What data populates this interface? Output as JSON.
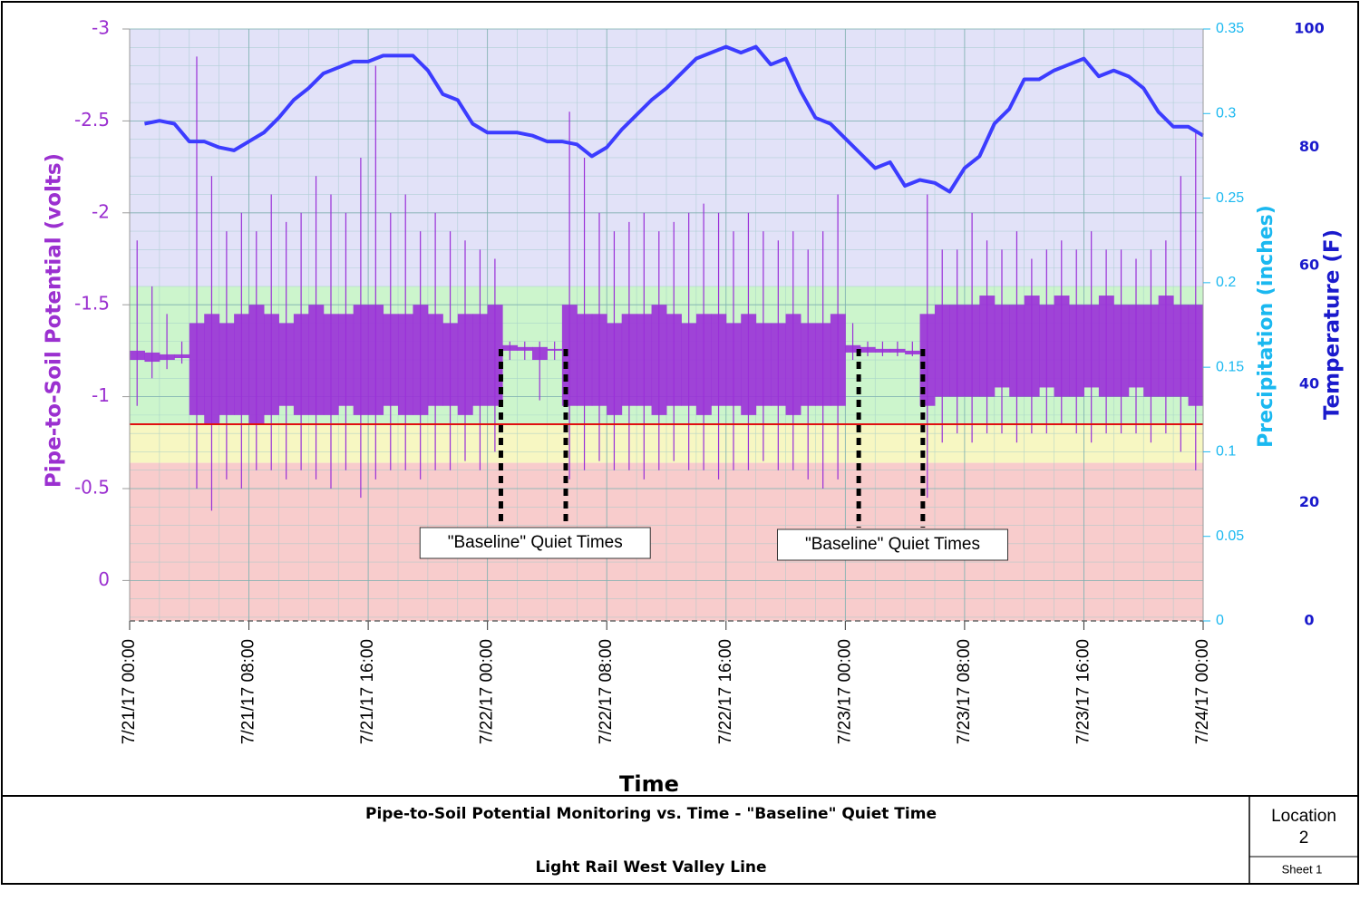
{
  "chart_data": {
    "type": "multi-axis-time",
    "x_label": "Time",
    "xlim": [
      0,
      72
    ],
    "xticks": [
      {
        "value": 0,
        "label": "7/21/17 00:00"
      },
      {
        "value": 8,
        "label": "7/21/17 08:00"
      },
      {
        "value": 16,
        "label": "7/21/17 16:00"
      },
      {
        "value": 24,
        "label": "7/22/17 00:00"
      },
      {
        "value": 32,
        "label": "7/22/17 08:00"
      },
      {
        "value": 40,
        "label": "7/22/17 16:00"
      },
      {
        "value": 48,
        "label": "7/23/17 00:00"
      },
      {
        "value": 56,
        "label": "7/23/17 08:00"
      },
      {
        "value": 64,
        "label": "7/23/17 16:00"
      },
      {
        "value": 72,
        "label": "7/24/17 00:00"
      }
    ],
    "x_minor_step": 2,
    "y_label": "Pipe-to-Soil Potential (volts)",
    "ylim": [
      -3,
      0.22
    ],
    "y_inverted": true,
    "yticks": [
      -3,
      -2.5,
      -2,
      -1.5,
      -1,
      -0.5,
      0
    ],
    "y_minor_step": 0.1,
    "y_color": "#9b30d0",
    "y2_label": "Precipitation (inches)",
    "y2lim": [
      0,
      0.35
    ],
    "y2ticks": [
      0,
      0.05,
      0.1,
      0.15,
      0.2,
      0.25,
      0.3,
      0.35
    ],
    "y2_color": "#1ab8f0",
    "y3_label": "Temperature (F)",
    "y3lim": [
      0,
      100
    ],
    "y3ticks": [
      0,
      20,
      40,
      60,
      80,
      100
    ],
    "y3_color": "#1a1acc",
    "grid": true,
    "zones": [
      {
        "from": -3,
        "to": -1.6,
        "color": "#e2e2f8"
      },
      {
        "from": -1.6,
        "to": -0.85,
        "color": "#ccf5cc"
      },
      {
        "from": -0.85,
        "to": -0.64,
        "color": "#f7f7c2"
      },
      {
        "from": -0.64,
        "to": 0.22,
        "color": "#f8cccc"
      }
    ],
    "criterion": {
      "value": -0.85,
      "color": "#e01010"
    },
    "potential": {
      "color": "#9a30d8",
      "x": [
        0,
        1,
        2,
        3,
        4,
        5,
        6,
        7,
        8,
        9,
        10,
        11,
        12,
        13,
        14,
        15,
        16,
        17,
        18,
        19,
        20,
        21,
        22,
        23,
        24,
        25,
        26,
        27,
        28,
        29,
        30,
        31,
        32,
        33,
        34,
        35,
        36,
        37,
        38,
        39,
        40,
        41,
        42,
        43,
        44,
        45,
        46,
        47,
        48,
        49,
        50,
        51,
        52,
        53,
        54,
        55,
        56,
        57,
        58,
        59,
        60,
        61,
        62,
        63,
        64,
        65,
        66,
        67,
        68,
        69,
        70,
        71
      ],
      "spike_high": [
        -1.85,
        -1.6,
        -1.45,
        -1.3,
        -2.85,
        -2.2,
        -1.9,
        -2.0,
        -1.9,
        -2.1,
        -1.95,
        -2.0,
        -2.2,
        -2.1,
        -2.0,
        -2.3,
        -2.8,
        -2.0,
        -2.1,
        -1.9,
        -2.0,
        -1.9,
        -1.85,
        -1.8,
        -1.75,
        -1.3,
        -1.3,
        -1.3,
        -1.3,
        -2.55,
        -2.3,
        -2.0,
        -1.9,
        -1.95,
        -2.0,
        -1.9,
        -1.95,
        -2.0,
        -2.05,
        -2.0,
        -1.9,
        -2.0,
        -1.9,
        -1.85,
        -1.9,
        -1.8,
        -1.9,
        -2.1,
        -1.4,
        -1.3,
        -1.3,
        -1.3,
        -1.3,
        -2.1,
        -1.8,
        -1.8,
        -2.0,
        -1.85,
        -1.8,
        -1.9,
        -1.75,
        -1.8,
        -1.85,
        -1.8,
        -1.9,
        -1.8,
        -1.8,
        -1.75,
        -1.8,
        -1.85,
        -2.2,
        -2.45
      ],
      "core_high": [
        -1.25,
        -1.24,
        -1.23,
        -1.23,
        -1.4,
        -1.45,
        -1.4,
        -1.45,
        -1.5,
        -1.45,
        -1.4,
        -1.45,
        -1.5,
        -1.45,
        -1.45,
        -1.5,
        -1.5,
        -1.45,
        -1.45,
        -1.5,
        -1.45,
        -1.4,
        -1.45,
        -1.45,
        -1.5,
        -1.28,
        -1.27,
        -1.27,
        -1.26,
        -1.5,
        -1.45,
        -1.45,
        -1.4,
        -1.45,
        -1.45,
        -1.5,
        -1.45,
        -1.4,
        -1.45,
        -1.45,
        -1.4,
        -1.45,
        -1.4,
        -1.4,
        -1.45,
        -1.4,
        -1.4,
        -1.45,
        -1.28,
        -1.27,
        -1.26,
        -1.26,
        -1.25,
        -1.45,
        -1.5,
        -1.5,
        -1.5,
        -1.55,
        -1.5,
        -1.5,
        -1.55,
        -1.5,
        -1.55,
        -1.5,
        -1.5,
        -1.55,
        -1.5,
        -1.5,
        -1.5,
        -1.55,
        -1.5,
        -1.5
      ],
      "core_low": [
        -1.2,
        -1.19,
        -1.2,
        -1.21,
        -0.9,
        -0.85,
        -0.9,
        -0.9,
        -0.85,
        -0.9,
        -0.95,
        -0.9,
        -0.9,
        -0.9,
        -0.95,
        -0.9,
        -0.9,
        -0.95,
        -0.9,
        -0.9,
        -0.95,
        -0.95,
        -0.9,
        -0.95,
        -0.95,
        -1.25,
        -1.25,
        -1.2,
        -1.25,
        -0.95,
        -0.95,
        -0.95,
        -0.9,
        -0.95,
        -0.95,
        -0.9,
        -0.95,
        -0.95,
        -0.9,
        -0.95,
        -0.95,
        -0.9,
        -0.95,
        -0.95,
        -0.9,
        -0.95,
        -0.95,
        -0.95,
        -1.24,
        -1.24,
        -1.24,
        -1.24,
        -1.23,
        -0.95,
        -1.0,
        -1.0,
        -1.0,
        -1.0,
        -1.05,
        -1.0,
        -1.0,
        -1.05,
        -1.0,
        -1.0,
        -1.05,
        -1.0,
        -1.0,
        -1.05,
        -1.0,
        -1.0,
        -1.0,
        -0.95
      ],
      "spike_low": [
        -0.95,
        -1.1,
        -1.15,
        -1.18,
        -0.5,
        -0.38,
        -0.55,
        -0.5,
        -0.6,
        -0.6,
        -0.55,
        -0.6,
        -0.55,
        -0.5,
        -0.6,
        -0.45,
        -0.55,
        -0.6,
        -0.6,
        -0.55,
        -0.6,
        -0.6,
        -0.65,
        -0.6,
        -0.7,
        -1.2,
        -1.2,
        -0.98,
        -1.2,
        -0.55,
        -0.6,
        -0.65,
        -0.6,
        -0.6,
        -0.55,
        -0.6,
        -0.65,
        -0.6,
        -0.6,
        -0.55,
        -0.6,
        -0.6,
        -0.65,
        -0.6,
        -0.6,
        -0.55,
        -0.5,
        -0.55,
        -1.2,
        -1.22,
        -1.22,
        -1.22,
        -1.22,
        -0.45,
        -0.75,
        -0.8,
        -0.75,
        -0.8,
        -0.8,
        -0.75,
        -0.8,
        -0.8,
        -0.85,
        -0.8,
        -0.75,
        -0.8,
        -0.8,
        -0.8,
        -0.75,
        -0.8,
        -0.7,
        -0.6
      ]
    },
    "temperature": {
      "color": "#3c3cff",
      "axis": "y3",
      "x": [
        1,
        2,
        3,
        4,
        5,
        6,
        7,
        8,
        9,
        10,
        11,
        12,
        13,
        14,
        15,
        16,
        17,
        18,
        19,
        20,
        21,
        22,
        23,
        24,
        25,
        26,
        27,
        28,
        29,
        30,
        31,
        32,
        33,
        34,
        35,
        36,
        37,
        38,
        39,
        40,
        41,
        42,
        43,
        44,
        45,
        46,
        47,
        48,
        49,
        50,
        51,
        52,
        53,
        54,
        55,
        56,
        57,
        58,
        59,
        60,
        61,
        62,
        63,
        64,
        65,
        66,
        67,
        68,
        69,
        70,
        71,
        72
      ],
      "values": [
        84,
        84.5,
        84,
        81,
        81,
        80,
        79.5,
        81,
        82.5,
        85,
        88,
        90,
        92.5,
        93.5,
        94.5,
        94.5,
        95.5,
        95.5,
        95.5,
        93,
        89,
        88,
        84,
        82.5,
        82.5,
        82.5,
        82,
        81,
        81,
        80.5,
        78.5,
        80,
        83,
        85.5,
        88,
        90,
        92.5,
        95,
        96,
        97,
        96,
        97,
        94,
        95,
        89.5,
        85,
        84,
        81.5,
        79,
        76.5,
        77.5,
        73.5,
        74.5,
        74,
        72.5,
        76.5,
        78.5,
        84,
        86.5,
        91.5,
        91.5,
        93,
        94,
        95,
        92,
        93,
        92,
        90,
        86,
        83.5,
        83.5,
        82
      ]
    },
    "quiet_periods": [
      {
        "from": 24.9,
        "to": 29.25,
        "text": "\"Baseline\" Quiet Times"
      },
      {
        "from": 48.9,
        "to": 53.2,
        "text": "\"Baseline\" Quiet Times"
      }
    ]
  },
  "title_block": {
    "title": "Pipe-to-Soil Potential Monitoring vs. Time - \"Baseline\" Quiet Time",
    "subtitle": "Light Rail West Valley Line",
    "location_label": "Location",
    "location_number": "2",
    "sheet": "Sheet 1"
  }
}
